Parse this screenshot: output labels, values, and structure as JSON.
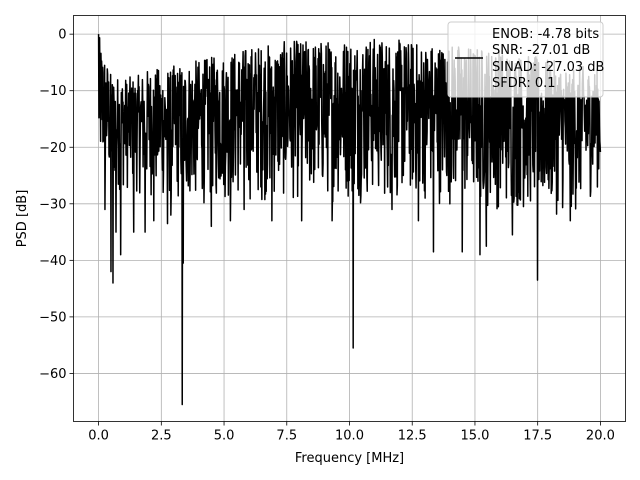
{
  "chart_data": {
    "type": "line",
    "xlabel": "Frequency [MHz]",
    "ylabel": "PSD [dB]",
    "xlim": [
      -1.0,
      21.0
    ],
    "ylim": [
      -68.5,
      3.3
    ],
    "xticks": [
      0.0,
      2.5,
      5.0,
      7.5,
      10.0,
      12.5,
      15.0,
      17.5,
      20.0
    ],
    "xtick_labels": [
      "0.0",
      "2.5",
      "5.0",
      "7.5",
      "10.0",
      "12.5",
      "15.0",
      "17.5",
      "20.0"
    ],
    "yticks": [
      0,
      -10,
      -20,
      -30,
      -40,
      -50,
      -60
    ],
    "ytick_labels": [
      "0",
      "−10",
      "−20",
      "−30",
      "−40",
      "−50",
      "−60"
    ],
    "grid": true,
    "line_color": "#000000",
    "legend": {
      "placement": "top-right",
      "entries": [
        "ENOB: -4.78 bits",
        "SNR: -27.01 dB",
        "SINAD: -27.03 dB",
        "SFDR: 0.1"
      ]
    },
    "series": [
      {
        "x_range": [
          0.0,
          20.0
        ],
        "band_upper": [
          [
            0.0,
            0.0
          ],
          [
            0.5,
            -7.0
          ],
          [
            1.0,
            -7.5
          ],
          [
            1.5,
            -7.5
          ],
          [
            2.0,
            -6.0
          ],
          [
            2.5,
            -6.0
          ],
          [
            3.0,
            -5.5
          ],
          [
            3.5,
            -5.0
          ],
          [
            4.0,
            -4.5
          ],
          [
            5.0,
            -3.5
          ],
          [
            6.0,
            -2.0
          ],
          [
            7.0,
            -1.5
          ],
          [
            8.0,
            -1.0
          ],
          [
            9.0,
            -1.0
          ],
          [
            10.0,
            -0.5
          ],
          [
            11.0,
            -0.5
          ],
          [
            12.0,
            -1.0
          ],
          [
            13.0,
            -1.5
          ],
          [
            14.0,
            -1.5
          ],
          [
            15.0,
            -2.0
          ],
          [
            16.0,
            -2.5
          ],
          [
            17.0,
            -3.5
          ],
          [
            18.0,
            -4.5
          ],
          [
            19.0,
            -5.5
          ],
          [
            20.0,
            -6.0
          ]
        ],
        "band_lower": [
          [
            0.0,
            -26.0
          ],
          [
            0.5,
            -28.0
          ],
          [
            1.0,
            -28.0
          ],
          [
            1.5,
            -28.5
          ],
          [
            2.0,
            -29.0
          ],
          [
            2.5,
            -30.0
          ],
          [
            3.0,
            -30.5
          ],
          [
            4.0,
            -30.5
          ],
          [
            5.0,
            -30.0
          ],
          [
            6.0,
            -30.0
          ],
          [
            7.0,
            -30.0
          ],
          [
            8.0,
            -30.0
          ],
          [
            9.0,
            -30.0
          ],
          [
            10.0,
            -30.0
          ],
          [
            11.0,
            -30.0
          ],
          [
            12.0,
            -30.0
          ],
          [
            13.0,
            -30.0
          ],
          [
            14.0,
            -30.5
          ],
          [
            15.0,
            -31.0
          ],
          [
            16.0,
            -31.5
          ],
          [
            17.0,
            -32.0
          ],
          [
            18.0,
            -32.0
          ],
          [
            19.0,
            -32.5
          ],
          [
            20.0,
            -27.0
          ]
        ],
        "dips": [
          [
            0.25,
            -31.0
          ],
          [
            0.5,
            -42.0
          ],
          [
            0.58,
            -44.0
          ],
          [
            0.7,
            -35.0
          ],
          [
            0.88,
            -39.0
          ],
          [
            1.4,
            -35.0
          ],
          [
            1.85,
            -35.0
          ],
          [
            2.2,
            -33.0
          ],
          [
            2.75,
            -33.5
          ],
          [
            2.88,
            -32.0
          ],
          [
            3.33,
            -65.5
          ],
          [
            3.38,
            -40.5
          ],
          [
            4.5,
            -34.0
          ],
          [
            5.25,
            -33.0
          ],
          [
            5.8,
            -31.0
          ],
          [
            6.9,
            -33.0
          ],
          [
            8.1,
            -33.0
          ],
          [
            9.3,
            -33.0
          ],
          [
            10.15,
            -55.5
          ],
          [
            11.7,
            -31.0
          ],
          [
            12.75,
            -33.0
          ],
          [
            13.35,
            -38.5
          ],
          [
            14.5,
            -38.5
          ],
          [
            15.2,
            -39.0
          ],
          [
            15.45,
            -37.5
          ],
          [
            16.5,
            -35.5
          ],
          [
            17.5,
            -43.5
          ],
          [
            18.8,
            -33.0
          ]
        ]
      }
    ]
  }
}
